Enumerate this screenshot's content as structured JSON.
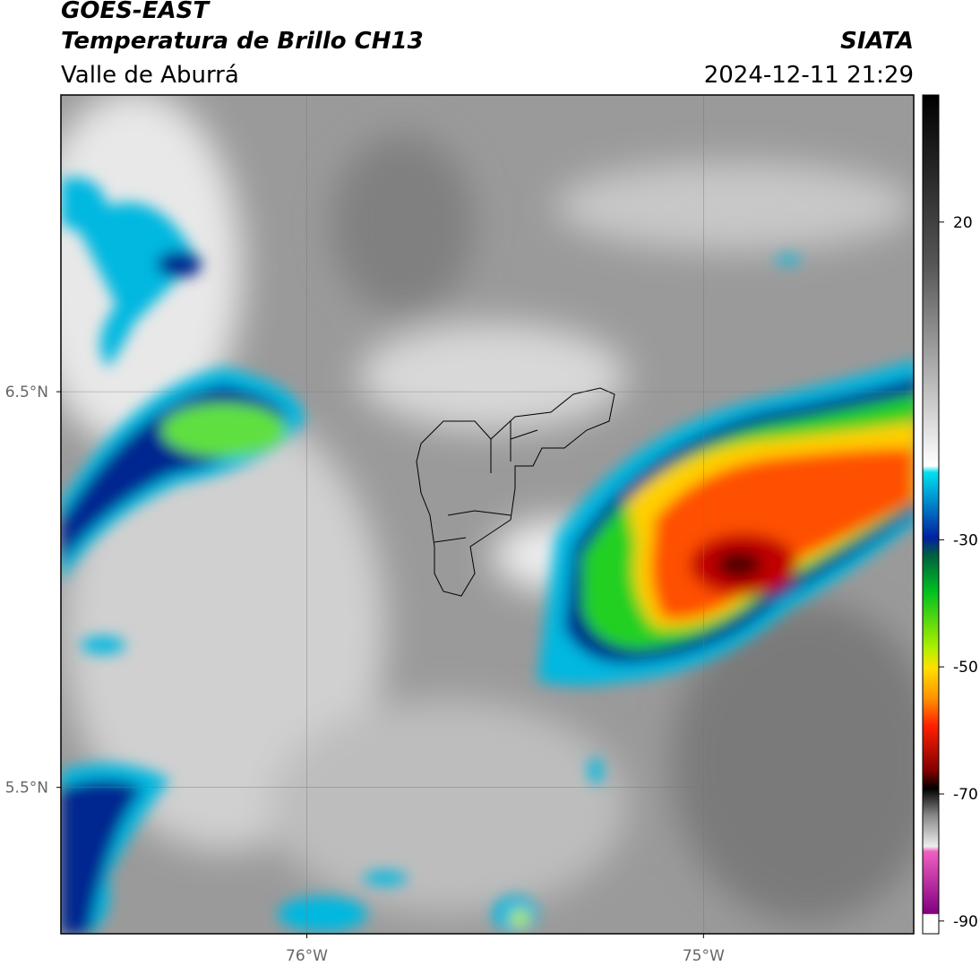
{
  "header": {
    "title": "GOES-EAST",
    "subtitle": "Temperatura de Brillo CH13",
    "region": "Valle de Aburrá",
    "source": "SIATA",
    "timestamp": "2024-12-11 21:29"
  },
  "map": {
    "xlim": [
      -76.62,
      -74.47
    ],
    "ylim": [
      5.13,
      7.25
    ],
    "xticks": [
      {
        "value": -76,
        "label": "76°W"
      },
      {
        "value": -75,
        "label": "75°W"
      }
    ],
    "yticks": [
      {
        "value": 6.5,
        "label": "6.5°N"
      },
      {
        "value": 5.5,
        "label": "5.5°N"
      }
    ],
    "grid": true
  },
  "colorbar": {
    "lim": [
      -92,
      40
    ],
    "ticks": [
      20,
      -30,
      -50,
      -70,
      -90
    ]
  }
}
